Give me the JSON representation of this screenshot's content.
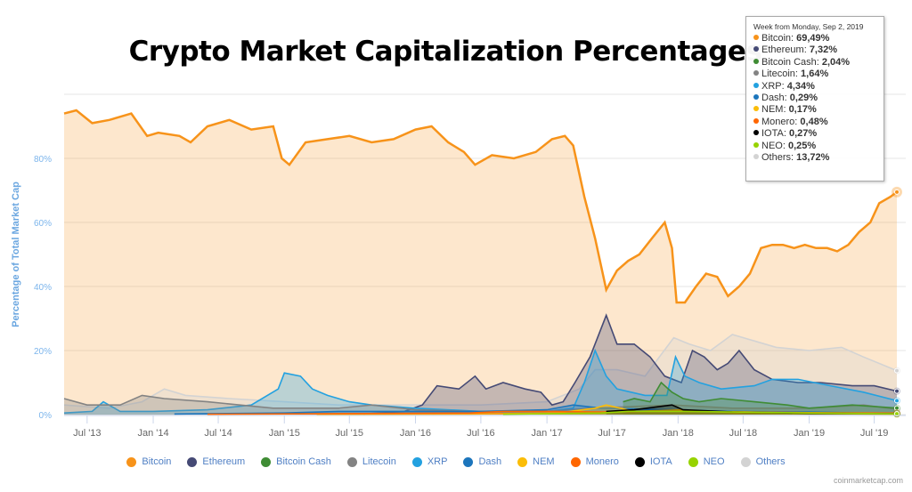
{
  "chart_data": {
    "type": "area",
    "title": "Crypto Market Capitalization Percentages",
    "ylabel": "Percentage of Total Market Cap",
    "xlabel": "",
    "ylim": [
      0,
      100
    ],
    "yticks": [
      "0%",
      "20%",
      "40%",
      "60%",
      "80%"
    ],
    "ytick_values": [
      0,
      20,
      40,
      60,
      80
    ],
    "xticks": [
      "Jul '13",
      "Jan '14",
      "Jul '14",
      "Jan '15",
      "Jul '15",
      "Jan '16",
      "Jul '16",
      "Jan '17",
      "Jul '17",
      "Jan '18",
      "Jul '18",
      "Jan '19",
      "Jul '19"
    ],
    "xtick_dates": [
      "2013-07-01",
      "2014-01-01",
      "2014-07-01",
      "2015-01-01",
      "2015-07-01",
      "2016-01-01",
      "2016-07-01",
      "2017-01-01",
      "2017-07-01",
      "2018-01-01",
      "2018-07-01",
      "2019-01-01",
      "2019-07-01"
    ],
    "xlim": [
      "2013-04-28",
      "2019-09-02"
    ],
    "grid": true,
    "legend_position": "bottom",
    "series": [
      {
        "name": "Bitcoin",
        "color": "#f7931a",
        "points": [
          [
            "2013-04-28",
            94
          ],
          [
            "2013-06-01",
            95
          ],
          [
            "2013-07-15",
            91
          ],
          [
            "2013-09-01",
            92
          ],
          [
            "2013-11-01",
            94
          ],
          [
            "2013-12-15",
            87
          ],
          [
            "2014-01-15",
            88
          ],
          [
            "2014-03-15",
            87
          ],
          [
            "2014-04-15",
            85
          ],
          [
            "2014-06-01",
            90
          ],
          [
            "2014-08-01",
            92
          ],
          [
            "2014-10-01",
            89
          ],
          [
            "2014-12-01",
            90
          ],
          [
            "2014-12-25",
            80
          ],
          [
            "2015-01-15",
            78
          ],
          [
            "2015-03-01",
            85
          ],
          [
            "2015-05-01",
            86
          ],
          [
            "2015-07-01",
            87
          ],
          [
            "2015-09-01",
            85
          ],
          [
            "2015-11-01",
            86
          ],
          [
            "2016-01-01",
            89
          ],
          [
            "2016-02-15",
            90
          ],
          [
            "2016-04-01",
            85
          ],
          [
            "2016-05-15",
            82
          ],
          [
            "2016-06-15",
            78
          ],
          [
            "2016-08-01",
            81
          ],
          [
            "2016-10-01",
            80
          ],
          [
            "2016-12-01",
            82
          ],
          [
            "2017-01-15",
            86
          ],
          [
            "2017-02-20",
            87
          ],
          [
            "2017-03-15",
            84
          ],
          [
            "2017-04-15",
            68
          ],
          [
            "2017-05-15",
            55
          ],
          [
            "2017-06-15",
            39
          ],
          [
            "2017-07-15",
            45
          ],
          [
            "2017-08-15",
            48
          ],
          [
            "2017-09-15",
            50
          ],
          [
            "2017-10-20",
            55
          ],
          [
            "2017-11-25",
            60
          ],
          [
            "2017-12-15",
            52
          ],
          [
            "2017-12-28",
            35
          ],
          [
            "2018-01-20",
            35
          ],
          [
            "2018-02-20",
            40
          ],
          [
            "2018-03-20",
            44
          ],
          [
            "2018-04-20",
            43
          ],
          [
            "2018-05-20",
            37
          ],
          [
            "2018-06-20",
            40
          ],
          [
            "2018-07-20",
            44
          ],
          [
            "2018-08-20",
            52
          ],
          [
            "2018-09-20",
            53
          ],
          [
            "2018-10-20",
            53
          ],
          [
            "2018-11-20",
            52
          ],
          [
            "2018-12-20",
            53
          ],
          [
            "2019-01-20",
            52
          ],
          [
            "2019-02-20",
            52
          ],
          [
            "2019-03-20",
            51
          ],
          [
            "2019-04-20",
            53
          ],
          [
            "2019-05-20",
            57
          ],
          [
            "2019-06-20",
            60
          ],
          [
            "2019-07-15",
            66
          ],
          [
            "2019-08-15",
            68
          ],
          [
            "2019-09-02",
            69.49
          ]
        ]
      },
      {
        "name": "Ethereum",
        "color": "#454a75",
        "points": [
          [
            "2015-08-10",
            0.2
          ],
          [
            "2015-12-01",
            1
          ],
          [
            "2016-01-20",
            3
          ],
          [
            "2016-03-01",
            9
          ],
          [
            "2016-05-01",
            8
          ],
          [
            "2016-06-15",
            12
          ],
          [
            "2016-07-15",
            8
          ],
          [
            "2016-09-01",
            10
          ],
          [
            "2016-11-01",
            8
          ],
          [
            "2016-12-15",
            7
          ],
          [
            "2017-01-15",
            3
          ],
          [
            "2017-02-15",
            4
          ],
          [
            "2017-03-20",
            10
          ],
          [
            "2017-05-01",
            18
          ],
          [
            "2017-06-15",
            31
          ],
          [
            "2017-07-15",
            22
          ],
          [
            "2017-09-01",
            22
          ],
          [
            "2017-10-15",
            18
          ],
          [
            "2017-11-25",
            12
          ],
          [
            "2018-01-10",
            10
          ],
          [
            "2018-02-10",
            20
          ],
          [
            "2018-03-15",
            18
          ],
          [
            "2018-04-20",
            14
          ],
          [
            "2018-05-20",
            16
          ],
          [
            "2018-06-20",
            20
          ],
          [
            "2018-08-01",
            14
          ],
          [
            "2018-09-20",
            11
          ],
          [
            "2018-12-01",
            10
          ],
          [
            "2019-02-01",
            10
          ],
          [
            "2019-05-01",
            9
          ],
          [
            "2019-07-01",
            9
          ],
          [
            "2019-09-02",
            7.32
          ]
        ]
      },
      {
        "name": "Bitcoin Cash",
        "color": "#3f8c34",
        "points": [
          [
            "2017-08-01",
            4
          ],
          [
            "2017-09-01",
            5
          ],
          [
            "2017-10-15",
            4
          ],
          [
            "2017-11-15",
            10
          ],
          [
            "2017-12-15",
            7
          ],
          [
            "2018-01-15",
            5
          ],
          [
            "2018-03-01",
            4
          ],
          [
            "2018-05-01",
            5
          ],
          [
            "2018-08-01",
            4
          ],
          [
            "2018-11-01",
            3
          ],
          [
            "2019-01-01",
            2
          ],
          [
            "2019-05-01",
            3
          ],
          [
            "2019-09-02",
            2.04
          ]
        ]
      },
      {
        "name": "Litecoin",
        "color": "#838383",
        "points": [
          [
            "2013-04-28",
            5
          ],
          [
            "2013-07-01",
            3
          ],
          [
            "2013-10-01",
            3
          ],
          [
            "2013-12-01",
            6
          ],
          [
            "2014-02-01",
            5
          ],
          [
            "2014-06-01",
            4
          ],
          [
            "2014-12-01",
            2
          ],
          [
            "2015-06-01",
            2
          ],
          [
            "2015-09-01",
            3
          ],
          [
            "2016-01-01",
            1.5
          ],
          [
            "2016-07-01",
            1
          ],
          [
            "2017-01-01",
            1
          ],
          [
            "2017-05-01",
            2
          ],
          [
            "2017-12-15",
            3
          ],
          [
            "2018-06-01",
            2
          ],
          [
            "2019-01-01",
            2
          ],
          [
            "2019-06-01",
            3
          ],
          [
            "2019-09-02",
            1.64
          ]
        ]
      },
      {
        "name": "XRP",
        "color": "#23a1e0",
        "points": [
          [
            "2013-04-28",
            0.5
          ],
          [
            "2013-07-15",
            1
          ],
          [
            "2013-08-15",
            4
          ],
          [
            "2013-10-01",
            1
          ],
          [
            "2014-01-01",
            1
          ],
          [
            "2014-06-01",
            1.5
          ],
          [
            "2014-10-01",
            3
          ],
          [
            "2014-12-15",
            8
          ],
          [
            "2015-01-01",
            13
          ],
          [
            "2015-02-15",
            12
          ],
          [
            "2015-03-20",
            8
          ],
          [
            "2015-05-01",
            6
          ],
          [
            "2015-07-01",
            4
          ],
          [
            "2015-09-01",
            3
          ],
          [
            "2016-01-01",
            2
          ],
          [
            "2016-07-01",
            1
          ],
          [
            "2017-01-01",
            1
          ],
          [
            "2017-03-15",
            2
          ],
          [
            "2017-04-15",
            10
          ],
          [
            "2017-05-15",
            20
          ],
          [
            "2017-06-15",
            12
          ],
          [
            "2017-07-15",
            8
          ],
          [
            "2017-10-01",
            6
          ],
          [
            "2017-12-01",
            6
          ],
          [
            "2017-12-25",
            18
          ],
          [
            "2018-01-20",
            12
          ],
          [
            "2018-03-01",
            10
          ],
          [
            "2018-05-01",
            8
          ],
          [
            "2018-08-01",
            9
          ],
          [
            "2018-09-20",
            11
          ],
          [
            "2018-12-01",
            11
          ],
          [
            "2019-03-01",
            9
          ],
          [
            "2019-06-01",
            7
          ],
          [
            "2019-09-02",
            4.34
          ]
        ]
      },
      {
        "name": "Dash",
        "color": "#1c75bc",
        "points": [
          [
            "2014-03-01",
            0.2
          ],
          [
            "2015-01-01",
            0.5
          ],
          [
            "2015-06-01",
            1
          ],
          [
            "2016-01-01",
            1
          ],
          [
            "2016-07-01",
            1
          ],
          [
            "2017-01-01",
            1.5
          ],
          [
            "2017-03-15",
            3
          ],
          [
            "2017-06-01",
            2
          ],
          [
            "2017-12-01",
            1.5
          ],
          [
            "2018-06-01",
            1
          ],
          [
            "2019-01-01",
            0.8
          ],
          [
            "2019-09-02",
            0.29
          ]
        ]
      },
      {
        "name": "NEM",
        "color": "#fbbd08",
        "points": [
          [
            "2015-04-01",
            0.1
          ],
          [
            "2016-06-01",
            0.2
          ],
          [
            "2017-02-01",
            0.5
          ],
          [
            "2017-05-15",
            2
          ],
          [
            "2017-06-15",
            3
          ],
          [
            "2017-09-01",
            1
          ],
          [
            "2018-01-10",
            1.5
          ],
          [
            "2018-06-01",
            0.6
          ],
          [
            "2019-01-01",
            0.3
          ],
          [
            "2019-09-02",
            0.17
          ]
        ]
      },
      {
        "name": "Monero",
        "color": "#ff6600",
        "points": [
          [
            "2014-06-01",
            0.1
          ],
          [
            "2016-06-01",
            0.5
          ],
          [
            "2016-09-01",
            1
          ],
          [
            "2017-01-01",
            1
          ],
          [
            "2017-06-01",
            0.8
          ],
          [
            "2018-01-01",
            1
          ],
          [
            "2018-06-01",
            0.9
          ],
          [
            "2019-01-01",
            0.6
          ],
          [
            "2019-09-02",
            0.48
          ]
        ]
      },
      {
        "name": "IOTA",
        "color": "#000000",
        "points": [
          [
            "2017-06-15",
            1
          ],
          [
            "2017-09-01",
            1.5
          ],
          [
            "2017-12-15",
            3
          ],
          [
            "2018-01-15",
            1.5
          ],
          [
            "2018-06-01",
            0.8
          ],
          [
            "2019-01-01",
            0.4
          ],
          [
            "2019-09-02",
            0.27
          ]
        ]
      },
      {
        "name": "NEO",
        "color": "#97d300",
        "points": [
          [
            "2016-09-01",
            0.1
          ],
          [
            "2017-06-01",
            0.5
          ],
          [
            "2017-08-15",
            1
          ],
          [
            "2018-01-15",
            1
          ],
          [
            "2018-06-01",
            0.8
          ],
          [
            "2019-01-01",
            0.5
          ],
          [
            "2019-09-02",
            0.25
          ]
        ]
      },
      {
        "name": "Others",
        "color": "#d3d3d3",
        "points": [
          [
            "2013-04-28",
            3
          ],
          [
            "2013-09-01",
            2
          ],
          [
            "2013-12-01",
            4
          ],
          [
            "2014-02-01",
            8
          ],
          [
            "2014-04-01",
            6
          ],
          [
            "2014-08-01",
            5
          ],
          [
            "2015-01-01",
            4
          ],
          [
            "2015-06-01",
            3
          ],
          [
            "2016-01-01",
            3
          ],
          [
            "2016-07-01",
            3
          ],
          [
            "2017-01-01",
            4
          ],
          [
            "2017-04-01",
            8
          ],
          [
            "2017-05-15",
            14
          ],
          [
            "2017-07-15",
            14
          ],
          [
            "2017-10-01",
            12
          ],
          [
            "2017-12-20",
            24
          ],
          [
            "2018-02-01",
            22
          ],
          [
            "2018-04-01",
            20
          ],
          [
            "2018-06-01",
            25
          ],
          [
            "2018-08-01",
            23
          ],
          [
            "2018-10-01",
            21
          ],
          [
            "2019-01-01",
            20
          ],
          [
            "2019-04-01",
            21
          ],
          [
            "2019-06-01",
            18
          ],
          [
            "2019-09-02",
            13.72
          ]
        ]
      }
    ]
  },
  "tooltip": {
    "header": "Week from Monday, Sep 2, 2019",
    "rows": [
      {
        "label": "Bitcoin: ",
        "value": "69,49%",
        "color": "#f7931a"
      },
      {
        "label": "Ethereum: ",
        "value": "7,32%",
        "color": "#454a75"
      },
      {
        "label": "Bitcoin Cash: ",
        "value": "2,04%",
        "color": "#3f8c34"
      },
      {
        "label": "Litecoin: ",
        "value": "1,64%",
        "color": "#838383"
      },
      {
        "label": "XRP: ",
        "value": "4,34%",
        "color": "#23a1e0"
      },
      {
        "label": "Dash: ",
        "value": "0,29%",
        "color": "#1c75bc"
      },
      {
        "label": "NEM: ",
        "value": "0,17%",
        "color": "#fbbd08"
      },
      {
        "label": "Monero: ",
        "value": "0,48%",
        "color": "#ff6600"
      },
      {
        "label": "IOTA: ",
        "value": "0,27%",
        "color": "#000000"
      },
      {
        "label": "NEO: ",
        "value": "0,25%",
        "color": "#97d300"
      },
      {
        "label": "Others: ",
        "value": "13,72%",
        "color": "#d3d3d3"
      }
    ]
  },
  "credit": "coinmarketcap.com"
}
